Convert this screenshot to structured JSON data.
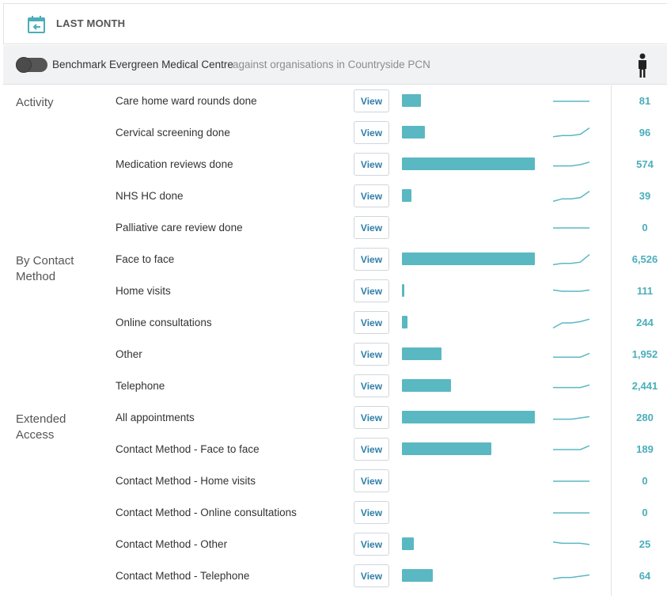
{
  "header": {
    "title": "LAST MONTH",
    "icon": "calendar-back-icon"
  },
  "benchmark": {
    "label": "Benchmark Evergreen Medical Centre",
    "comparison": "against organisations in Countryside PCN",
    "icon": "person-icon"
  },
  "colors": {
    "bar": "#5ab8c2",
    "value": "#4aaebb",
    "spark": "#5ab8c2",
    "button_text": "#2f7ea8"
  },
  "groups": [
    {
      "label": "Activity",
      "rows": [
        {
          "label": "Care home ward rounds done",
          "button": "View",
          "bar_fraction": 0.14,
          "spark": [
            5,
            5,
            5,
            5,
            5
          ],
          "value": "81"
        },
        {
          "label": "Cervical screening done",
          "button": "View",
          "bar_fraction": 0.17,
          "spark": [
            2,
            3,
            3,
            4,
            9
          ],
          "value": "96"
        },
        {
          "label": "Medication reviews done",
          "button": "View",
          "bar_fraction": 1.0,
          "spark": [
            4,
            4,
            4,
            5,
            7
          ],
          "value": "574"
        },
        {
          "label": "NHS HC done",
          "button": "View",
          "bar_fraction": 0.07,
          "spark": [
            1,
            3,
            3,
            4,
            9
          ],
          "value": "39"
        },
        {
          "label": "Palliative care review done",
          "button": "View",
          "bar_fraction": 0,
          "spark": [
            5,
            5,
            5,
            5,
            5
          ],
          "value": "0"
        }
      ]
    },
    {
      "label": "By Contact Method",
      "rows": [
        {
          "label": "Face to face",
          "button": "View",
          "bar_fraction": 1.0,
          "spark": [
            1,
            2,
            2,
            3,
            9
          ],
          "value": "6,526"
        },
        {
          "label": "Home visits",
          "button": "View",
          "bar_fraction": 0.02,
          "spark": [
            6,
            5,
            5,
            5,
            6
          ],
          "value": "111"
        },
        {
          "label": "Online consultations",
          "button": "View",
          "bar_fraction": 0.04,
          "spark": [
            1,
            5,
            5,
            6,
            8
          ],
          "value": "244"
        },
        {
          "label": "Other",
          "button": "View",
          "bar_fraction": 0.3,
          "spark": [
            3,
            3,
            3,
            3,
            6
          ],
          "value": "1,952"
        },
        {
          "label": "Telephone",
          "button": "View",
          "bar_fraction": 0.37,
          "spark": [
            4,
            4,
            4,
            4,
            6
          ],
          "value": "2,441"
        }
      ]
    },
    {
      "label": "Extended Access",
      "rows": [
        {
          "label": "All appointments",
          "button": "View",
          "bar_fraction": 1.0,
          "spark": [
            4,
            4,
            4,
            5,
            6
          ],
          "value": "280"
        },
        {
          "label": "Contact Method - Face to face",
          "button": "View",
          "bar_fraction": 0.67,
          "spark": [
            5,
            5,
            5,
            5,
            8
          ],
          "value": "189"
        },
        {
          "label": "Contact Method - Home visits",
          "button": "View",
          "bar_fraction": 0,
          "spark": [
            5,
            5,
            5,
            5,
            5
          ],
          "value": "0"
        },
        {
          "label": "Contact Method - Online consultations",
          "button": "View",
          "bar_fraction": 0,
          "spark": [
            5,
            5,
            5,
            5,
            5
          ],
          "value": "0"
        },
        {
          "label": "Contact Method - Other",
          "button": "View",
          "bar_fraction": 0.09,
          "spark": [
            7,
            6,
            6,
            6,
            5
          ],
          "value": "25"
        },
        {
          "label": "Contact Method - Telephone",
          "button": "View",
          "bar_fraction": 0.23,
          "spark": [
            3,
            4,
            4,
            5,
            6
          ],
          "value": "64"
        }
      ]
    }
  ]
}
